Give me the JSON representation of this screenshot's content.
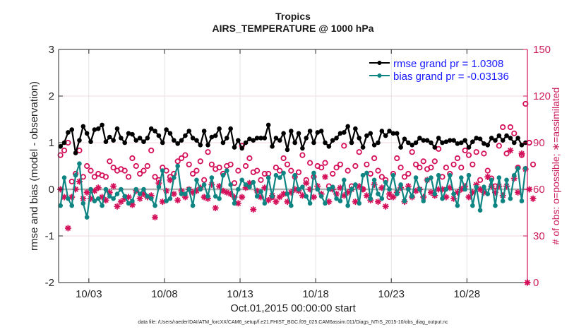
{
  "chart_data": {
    "type": "line",
    "title": "Tropics",
    "subtitle": "AIRS_TEMPERATURE @ 1000 hPa",
    "xlabel": "Oct.01,2015 00:00:00 start",
    "ylabel": "rmse and bias (model - observation)",
    "y2label": "# of obs: o=possible; ∗=assimilated",
    "footnote": "data file: /Users/raeder/DAI/ATM_forcXX/CAM6_setup/f.e21.FHIST_BGC.f09_025.CAM6assim.011/Diags_NTrS_2015-10/obs_diag_output.nc",
    "xlim_days": [
      0,
      31
    ],
    "ylim": [
      -2,
      3
    ],
    "y2lim": [
      0,
      150
    ],
    "yticks": [
      "3",
      "2",
      "1",
      "0",
      "-1",
      "-2"
    ],
    "y2ticks": [
      "150",
      "120",
      "90",
      "60",
      "30",
      "0"
    ],
    "xticks": [
      {
        "day": 2,
        "label": "10/03"
      },
      {
        "day": 7,
        "label": "10/08"
      },
      {
        "day": 12,
        "label": "10/13"
      },
      {
        "day": 17,
        "label": "10/18"
      },
      {
        "day": 22,
        "label": "10/23"
      },
      {
        "day": 27,
        "label": "10/28"
      }
    ],
    "grid": true,
    "legend_position": "top-right",
    "colors": {
      "rmse": "#000000",
      "bias": "#0f8583",
      "obs": "#d4105a",
      "zero_line": "#b3b3b3",
      "legend_text": "#1a1aff"
    },
    "time_step_days": 0.25,
    "time_start_day": 0.125,
    "series": [
      {
        "name": "rmse grand pr = 1.0308",
        "key": "rmse",
        "values": [
          0.92,
          1.0,
          1.22,
          1.28,
          0.78,
          1.05,
          1.35,
          1.2,
          1.02,
          1.28,
          1.3,
          1.38,
          1.02,
          1.12,
          1.05,
          1.3,
          1.1,
          1.0,
          1.2,
          1.18,
          1.05,
          1.1,
          1.02,
          1.1,
          1.3,
          1.25,
          1.15,
          1.0,
          1.28,
          1.2,
          1.05,
          0.98,
          1.05,
          1.15,
          1.25,
          1.1,
          1.05,
          0.95,
          1.25,
          0.95,
          1.12,
          1.15,
          1.3,
          1.0,
          1.1,
          1.3,
          0.9,
          1.05,
          0.88,
          1.0,
          1.08,
          1.05,
          1.1,
          1.1,
          1.1,
          1.38,
          0.92,
          1.1,
          1.05,
          1.2,
          0.85,
          1.25,
          1.0,
          1.2,
          0.88,
          1.1,
          1.25,
          1.0,
          1.22,
          1.25,
          1.0,
          0.92,
          1.05,
          1.1,
          1.2,
          1.22,
          1.35,
          1.0,
          1.3,
          1.1,
          0.9,
          1.15,
          1.2,
          0.95,
          1.0,
          1.25,
          1.15,
          1.25,
          1.2,
          1.2,
          0.9,
          1.08,
          1.0,
          0.95,
          1.0,
          1.1,
          1.05,
          1.05,
          1.0,
          0.9,
          1.1,
          1.0,
          1.02,
          1.05,
          1.05,
          0.98,
          1.0,
          1.05,
          0.9,
          1.02,
          1.1,
          1.08,
          0.98,
          0.95,
          1.1,
          1.05,
          1.15,
          1.05,
          1.15,
          1.1,
          1.0,
          1.1,
          0.95,
          1.0
        ]
      },
      {
        "name": "bias grand pr = -0.03136",
        "key": "bias",
        "values": [
          -0.35,
          0.25,
          -0.2,
          -0.35,
          0.3,
          0.55,
          -0.3,
          -0.6,
          0.0,
          -0.25,
          -0.2,
          -0.35,
          0.0,
          -0.15,
          -0.2,
          -0.1,
          0.0,
          -0.15,
          -0.3,
          -0.25,
          0.0,
          -0.1,
          0.0,
          -0.15,
          -0.2,
          -0.35,
          0.05,
          0.4,
          -0.25,
          -0.2,
          0.25,
          0.5,
          -0.1,
          -0.1,
          0.0,
          -0.35,
          0.2,
          0.0,
          0.1,
          -0.15,
          0.25,
          -0.15,
          -0.2,
          0.3,
          0.4,
          0.1,
          -0.3,
          0.0,
          0.2,
          0.1,
          0.05,
          0.15,
          -0.15,
          -0.05,
          -0.3,
          0.25,
          -0.15,
          0.3,
          0.25,
          0.35,
          -0.1,
          -0.35,
          0.3,
          0.0,
          0.05,
          -0.15,
          -0.3,
          0.35,
          0.0,
          -0.15,
          -0.3,
          0.0,
          0.05,
          -0.2,
          -0.25,
          0.2,
          -0.35,
          0.0,
          0.1,
          -0.3,
          0.3,
          0.35,
          -0.2,
          0.2,
          -0.1,
          -0.2,
          0.15,
          0.0,
          0.3,
          -0.1,
          0.1,
          -0.25,
          0.0,
          -0.15,
          0.25,
          0.0,
          -0.25,
          0.2,
          0.25,
          -0.1,
          0.3,
          -0.2,
          0.0,
          0.3,
          -0.1,
          -0.35,
          0.25,
          0.0,
          0.3,
          -0.35,
          0.05,
          -0.45,
          0.05,
          -0.1,
          0.2,
          -0.35,
          0.25,
          -0.25,
          0.2,
          -0.2,
          0.3,
          0.45,
          -0.25,
          0.45
        ]
      },
      {
        "name": "obs possible",
        "key": "nposs",
        "axis": "right",
        "values": [
          82,
          85,
          90,
          65,
          70,
          85,
          68,
          75,
          72,
          68,
          70,
          69,
          68,
          78,
          74,
          72,
          73,
          72,
          68,
          80,
          75,
          70,
          72,
          75,
          85,
          68,
          66,
          74,
          72,
          68,
          70,
          78,
          80,
          82,
          76,
          70,
          72,
          78,
          66,
          84,
          76,
          73,
          74,
          70,
          75,
          76,
          64,
          72,
          88,
          75,
          80,
          71,
          72,
          66,
          70,
          70,
          55,
          74,
          72,
          80,
          76,
          72,
          68,
          71,
          82,
          66,
          77,
          68,
          75,
          74,
          77,
          62,
          70,
          74,
          76,
          88,
          72,
          62,
          75,
          84,
          60,
          76,
          70,
          80,
          72,
          68,
          66,
          55,
          70,
          80,
          74,
          68,
          70,
          84,
          76,
          74,
          78,
          73,
          74,
          78,
          86,
          68,
          74,
          70,
          76,
          80,
          74,
          85,
          82,
          76,
          84,
          66,
          83,
          72,
          67,
          62,
          88,
          100,
          83,
          100,
          96,
          74,
          82,
          115,
          90,
          76
        ]
      },
      {
        "name": "obs assimilated",
        "key": "nassim",
        "axis": "right",
        "values": [
          60,
          55,
          35,
          55,
          60,
          65,
          54,
          58,
          54,
          59,
          61,
          55,
          53,
          58,
          62,
          49,
          52,
          54,
          55,
          50,
          59,
          54,
          57,
          55,
          56,
          42,
          64,
          52,
          59,
          66,
          57,
          53,
          59,
          55,
          60,
          58,
          59,
          61,
          55,
          54,
          63,
          48,
          62,
          59,
          58,
          57,
          55,
          51,
          55,
          61,
          64,
          47,
          59,
          55,
          61,
          53,
          56,
          52,
          55,
          57,
          52,
          58,
          60,
          59,
          56,
          64,
          60,
          55,
          62,
          57,
          68,
          52,
          60,
          57,
          61,
          56,
          58,
          60,
          52,
          62,
          60,
          56,
          53,
          63,
          52,
          61,
          49,
          57,
          55,
          58,
          61,
          52,
          62,
          55,
          59,
          60,
          55,
          66,
          58,
          56,
          60,
          60,
          55,
          61,
          54,
          58,
          60,
          62,
          55,
          58,
          63,
          60,
          58,
          68,
          62,
          58,
          62,
          56,
          62,
          85,
          67,
          58,
          83,
          73,
          60,
          54
        ]
      }
    ]
  }
}
